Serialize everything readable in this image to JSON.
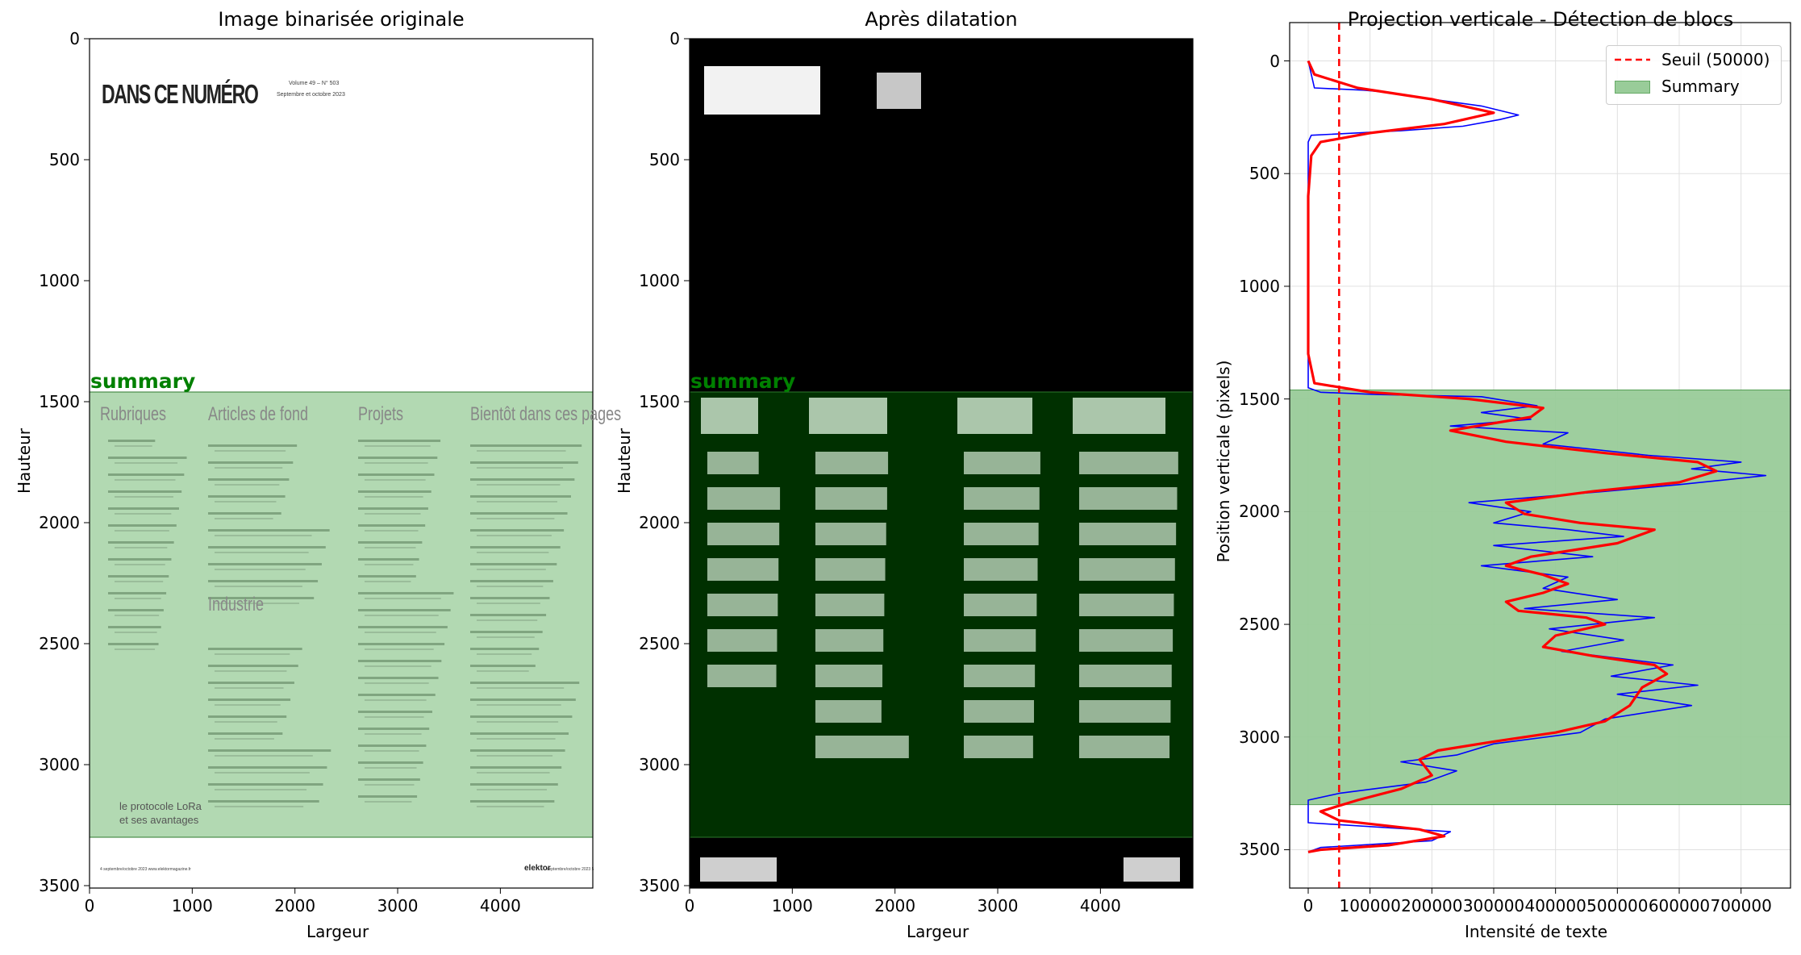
{
  "panels": [
    {
      "title": "Image binarisée originale",
      "xlabel": "Largeur",
      "ylabel": "Hauteur",
      "xticks": [
        "0",
        "1000",
        "2000",
        "3000",
        "4000"
      ],
      "yticks": [
        "0",
        "500",
        "1000",
        "1500",
        "2000",
        "2500",
        "3000",
        "3500"
      ],
      "region_label": "summary"
    },
    {
      "title": "Après dilatation",
      "xlabel": "Largeur",
      "ylabel": "Hauteur",
      "xticks": [
        "0",
        "1000",
        "2000",
        "3000",
        "4000"
      ],
      "yticks": [
        "0",
        "500",
        "1000",
        "1500",
        "2000",
        "2500",
        "3000",
        "3500"
      ],
      "region_label": "summary"
    },
    {
      "title": "Projection verticale - Détection de blocs",
      "xlabel": "Intensité de texte",
      "ylabel": "Position verticale (pixels)",
      "xticks": [
        "0",
        "100000",
        "200000",
        "300000",
        "400000",
        "500000",
        "600000",
        "700000"
      ],
      "yticks": [
        "0",
        "500",
        "1000",
        "1500",
        "2000",
        "2500",
        "3000",
        "3500"
      ],
      "legend": [
        "Seuil (50000)",
        "Summary"
      ]
    }
  ],
  "document": {
    "heading": "DANS CE NUMÉRO",
    "volume_line1": "Volume 49 – N° 503",
    "volume_line2": "Septembre et octobre 2023",
    "columns": [
      "Rubriques",
      "Articles de fond",
      "Projets",
      "Bientôt dans ces pages"
    ],
    "industrie": "Industrie",
    "lora_caption_1": "le protocole LoRa",
    "lora_caption_2": "et ses avantages",
    "footer_left": "4   septembre/octobre 2023   www.elektormagazine.fr",
    "footer_brand": "elektor",
    "footer_right": "septembre/octobre 2023   5"
  },
  "chart_data": [
    {
      "type": "image",
      "title": "Image binarisée originale",
      "xlabel": "Largeur",
      "ylabel": "Hauteur",
      "xlim": [
        0,
        4900
      ],
      "ylim": [
        3510,
        0
      ],
      "regions": [
        {
          "label": "summary",
          "y_start": 1460,
          "y_end": 3300,
          "color": "#b2d9b2"
        }
      ]
    },
    {
      "type": "image",
      "title": "Après dilatation",
      "xlabel": "Largeur",
      "ylabel": "Hauteur",
      "xlim": [
        0,
        4900
      ],
      "ylim": [
        3510,
        0
      ],
      "regions": [
        {
          "label": "summary",
          "y_start": 1460,
          "y_end": 3300,
          "color": "#003000"
        }
      ]
    },
    {
      "type": "line",
      "title": "Projection verticale - Détection de blocs",
      "xlabel": "Intensité de texte",
      "ylabel": "Position verticale (pixels)",
      "xlim": [
        -30000,
        780000
      ],
      "ylim": [
        3670,
        -170
      ],
      "grid": true,
      "legend_position": "top-right",
      "threshold": {
        "name": "Seuil (50000)",
        "x": 50000,
        "color": "#ff0000",
        "style": "dashed"
      },
      "span": {
        "name": "Summary",
        "y_start": 1460,
        "y_end": 3300,
        "color": "#99cc99"
      },
      "series": [
        {
          "color": "#0000ff",
          "points": [
            [
              0,
              0
            ],
            [
              10000,
              120
            ],
            [
              90000,
              130
            ],
            [
              130000,
              140
            ],
            [
              200000,
              170
            ],
            [
              280000,
              200
            ],
            [
              310000,
              220
            ],
            [
              340000,
              240
            ],
            [
              310000,
              260
            ],
            [
              250000,
              290
            ],
            [
              150000,
              310
            ],
            [
              5000,
              330
            ],
            [
              0,
              360
            ],
            [
              0,
              700
            ],
            [
              0,
              1450
            ],
            [
              20000,
              1470
            ],
            [
              110000,
              1480
            ],
            [
              280000,
              1490
            ],
            [
              370000,
              1530
            ],
            [
              280000,
              1560
            ],
            [
              360000,
              1590
            ],
            [
              230000,
              1620
            ],
            [
              420000,
              1650
            ],
            [
              380000,
              1700
            ],
            [
              550000,
              1750
            ],
            [
              700000,
              1780
            ],
            [
              620000,
              1810
            ],
            [
              740000,
              1840
            ],
            [
              600000,
              1880
            ],
            [
              480000,
              1910
            ],
            [
              260000,
              1960
            ],
            [
              360000,
              2000
            ],
            [
              300000,
              2050
            ],
            [
              420000,
              2080
            ],
            [
              510000,
              2110
            ],
            [
              300000,
              2150
            ],
            [
              460000,
              2200
            ],
            [
              280000,
              2240
            ],
            [
              420000,
              2290
            ],
            [
              380000,
              2340
            ],
            [
              500000,
              2390
            ],
            [
              350000,
              2430
            ],
            [
              560000,
              2470
            ],
            [
              390000,
              2520
            ],
            [
              510000,
              2570
            ],
            [
              410000,
              2620
            ],
            [
              590000,
              2680
            ],
            [
              490000,
              2730
            ],
            [
              630000,
              2770
            ],
            [
              500000,
              2810
            ],
            [
              620000,
              2860
            ],
            [
              480000,
              2920
            ],
            [
              440000,
              2980
            ],
            [
              300000,
              3030
            ],
            [
              240000,
              3080
            ],
            [
              150000,
              3110
            ],
            [
              240000,
              3150
            ],
            [
              190000,
              3200
            ],
            [
              50000,
              3250
            ],
            [
              0,
              3280
            ],
            [
              0,
              3380
            ],
            [
              230000,
              3420
            ],
            [
              200000,
              3460
            ],
            [
              20000,
              3490
            ],
            [
              0,
              3510
            ]
          ]
        },
        {
          "color": "#ff0000",
          "points": [
            [
              0,
              0
            ],
            [
              10000,
              60
            ],
            [
              80000,
              120
            ],
            [
              200000,
              170
            ],
            [
              300000,
              230
            ],
            [
              220000,
              280
            ],
            [
              100000,
              320
            ],
            [
              20000,
              360
            ],
            [
              5000,
              420
            ],
            [
              0,
              600
            ],
            [
              0,
              1300
            ],
            [
              10000,
              1430
            ],
            [
              100000,
              1470
            ],
            [
              260000,
              1500
            ],
            [
              380000,
              1540
            ],
            [
              360000,
              1580
            ],
            [
              230000,
              1640
            ],
            [
              320000,
              1690
            ],
            [
              480000,
              1740
            ],
            [
              630000,
              1780
            ],
            [
              660000,
              1820
            ],
            [
              600000,
              1870
            ],
            [
              460000,
              1910
            ],
            [
              320000,
              1960
            ],
            [
              350000,
              2010
            ],
            [
              440000,
              2050
            ],
            [
              560000,
              2080
            ],
            [
              500000,
              2140
            ],
            [
              360000,
              2200
            ],
            [
              320000,
              2240
            ],
            [
              380000,
              2280
            ],
            [
              420000,
              2320
            ],
            [
              380000,
              2360
            ],
            [
              320000,
              2400
            ],
            [
              340000,
              2440
            ],
            [
              450000,
              2470
            ],
            [
              480000,
              2500
            ],
            [
              400000,
              2550
            ],
            [
              380000,
              2600
            ],
            [
              460000,
              2640
            ],
            [
              560000,
              2680
            ],
            [
              580000,
              2720
            ],
            [
              540000,
              2780
            ],
            [
              520000,
              2860
            ],
            [
              480000,
              2930
            ],
            [
              400000,
              2980
            ],
            [
              300000,
              3020
            ],
            [
              210000,
              3060
            ],
            [
              180000,
              3100
            ],
            [
              200000,
              3170
            ],
            [
              150000,
              3230
            ],
            [
              80000,
              3280
            ],
            [
              20000,
              3330
            ],
            [
              50000,
              3370
            ],
            [
              180000,
              3410
            ],
            [
              220000,
              3440
            ],
            [
              130000,
              3480
            ],
            [
              20000,
              3500
            ],
            [
              0,
              3510
            ]
          ]
        }
      ]
    }
  ]
}
